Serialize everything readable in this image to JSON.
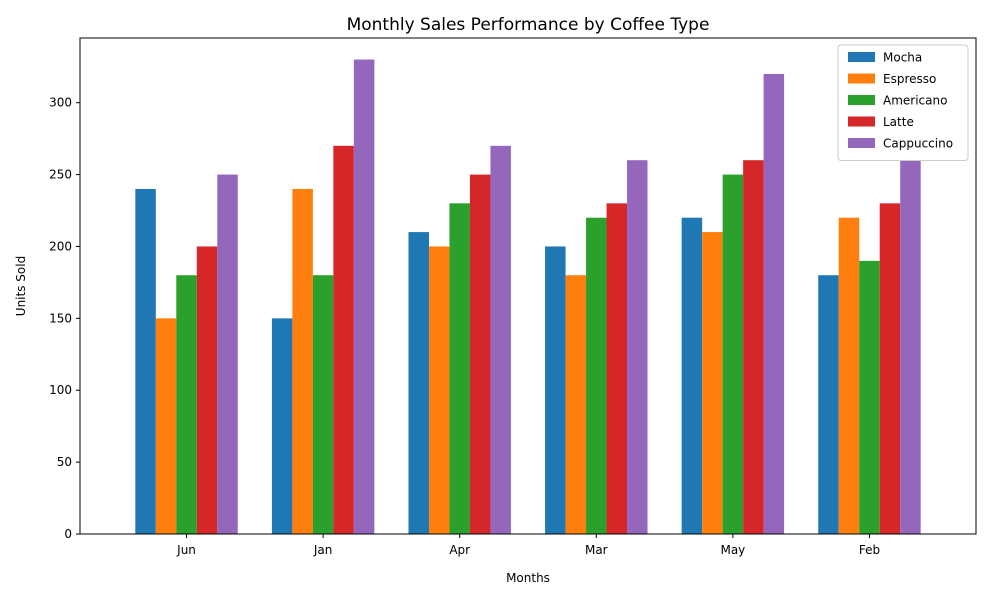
{
  "chart_data": {
    "type": "bar",
    "title": "Monthly Sales Performance by Coffee Type",
    "xlabel": "Months",
    "ylabel": "Units Sold",
    "categories": [
      "Jun",
      "Jan",
      "Apr",
      "Mar",
      "May",
      "Feb"
    ],
    "ylim": [
      0,
      345
    ],
    "yticks": [
      0,
      50,
      100,
      150,
      200,
      250,
      300
    ],
    "grid": false,
    "legend_position": "top-right",
    "series": [
      {
        "name": "Mocha",
        "color": "#1f77b4",
        "values": [
          240,
          150,
          210,
          200,
          220,
          180
        ]
      },
      {
        "name": "Espresso",
        "color": "#ff7f0e",
        "values": [
          150,
          240,
          200,
          180,
          210,
          220
        ]
      },
      {
        "name": "Americano",
        "color": "#2ca02c",
        "values": [
          180,
          180,
          230,
          220,
          250,
          190
        ]
      },
      {
        "name": "Latte",
        "color": "#d62728",
        "values": [
          200,
          270,
          250,
          230,
          260,
          230
        ]
      },
      {
        "name": "Cappuccino",
        "color": "#9467bd",
        "values": [
          250,
          330,
          270,
          260,
          320,
          260
        ]
      }
    ]
  }
}
